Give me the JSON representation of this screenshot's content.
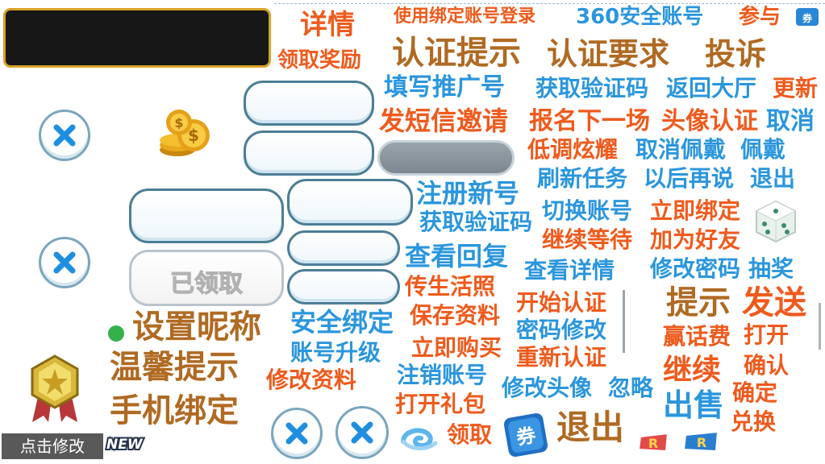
{
  "labels": {
    "details": "详情",
    "claim_reward": "领取奖励",
    "login_bound_account": "使用绑定账号登录",
    "account_360": "360安全账号",
    "participate": "参与",
    "auth_tip": "认证提示",
    "auth_requirement": "认证要求",
    "complain": "投诉",
    "fill_referral": "填写推广号",
    "get_code": "获取验证码",
    "back_to_hall": "返回大厅",
    "update": "更新",
    "send_sms_invite": "发短信邀请",
    "join_next": "报名下一场",
    "avatar_auth": "头像认证",
    "cancel": "取消",
    "low_key_show": "低调炫耀",
    "cancel_wear": "取消佩戴",
    "wear": "佩戴",
    "refresh_task": "刷新任务",
    "later": "以后再说",
    "exit": "退出",
    "register_new": "注册新号",
    "switch_account": "切换账号",
    "bind_now": "立即绑定",
    "get_code_2": "获取验证码",
    "continue_wait": "继续等待",
    "add_friend": "加为好友",
    "view_reply": "查看回复",
    "view_details": "查看详情",
    "change_password": "修改密码",
    "lottery": "抽奖",
    "legend": "传生活照",
    "start_auth": "开始认证",
    "save_profile": "保存资料",
    "password_change": "密码修改",
    "safe_bind": "安全绑定",
    "account_upgrade": "账号升级",
    "buy_now": "立即购买",
    "reauth": "重新认证",
    "edit_profile": "修改资料",
    "cancel_account": "注销账号",
    "change_avatar": "修改头像",
    "ignore": "忽略",
    "open_gift": "打开礼包",
    "claim": "领取",
    "exit_big": "退出",
    "set_nickname": "设置昵称",
    "warm_tip": "温馨提示",
    "phone_bind": "手机绑定",
    "tip": "提示",
    "send": "发送",
    "win_credit": "赢话费",
    "open": "打开",
    "continue": "继续",
    "confirm": "确认",
    "sell": "出售",
    "ok": "确定",
    "exchange": "兑换"
  },
  "received_button": "已领取",
  "edit_tag": "点击修改",
  "new_badge": "NEW",
  "icons": {
    "coins": "coins-icon",
    "dice": "dice-icon",
    "medal": "medal-icon",
    "coupon": "coupon-icon",
    "swirl": "swirl-icon",
    "r_badge": "r-badge-icon"
  },
  "colors": {
    "orange": "#ef5a1c",
    "blue": "#2a96dd",
    "brown": "#b06a22",
    "panel_border": "#d7a125"
  }
}
